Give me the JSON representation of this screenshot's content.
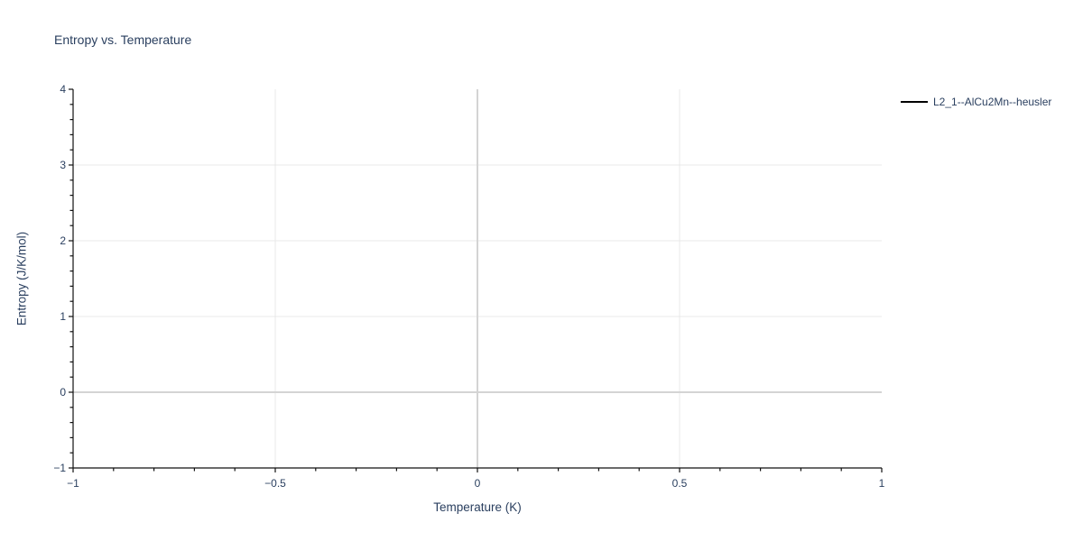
{
  "chart_data": {
    "type": "line",
    "title": "Entropy vs. Temperature",
    "xlabel": "Temperature (K)",
    "ylabel": "Entropy (J/K/mol)",
    "xlim": [
      -1,
      1
    ],
    "ylim": [
      -1,
      4
    ],
    "xticks": {
      "values": [
        -1,
        -0.5,
        0,
        0.5,
        1
      ],
      "labels": [
        "−1",
        "−0.5",
        "0",
        "0.5",
        "1"
      ],
      "minor_step": 0.1
    },
    "yticks": {
      "values": [
        -1,
        0,
        1,
        2,
        3,
        4
      ],
      "labels": [
        "−1",
        "0",
        "1",
        "2",
        "3",
        "4"
      ],
      "minor_step": 0.2
    },
    "grid": true,
    "zeroline": true,
    "legend_position": "top-right-outside",
    "series": [
      {
        "name": "L2_1--AlCu2Mn--heusler",
        "color": "#000000",
        "x": [],
        "y": []
      }
    ]
  },
  "colors": {
    "font": "#2a3f5f",
    "axis_line": "#111111",
    "gridline": "#e8e8e8",
    "zeroline": "#d4d4d4",
    "background": "#ffffff"
  }
}
